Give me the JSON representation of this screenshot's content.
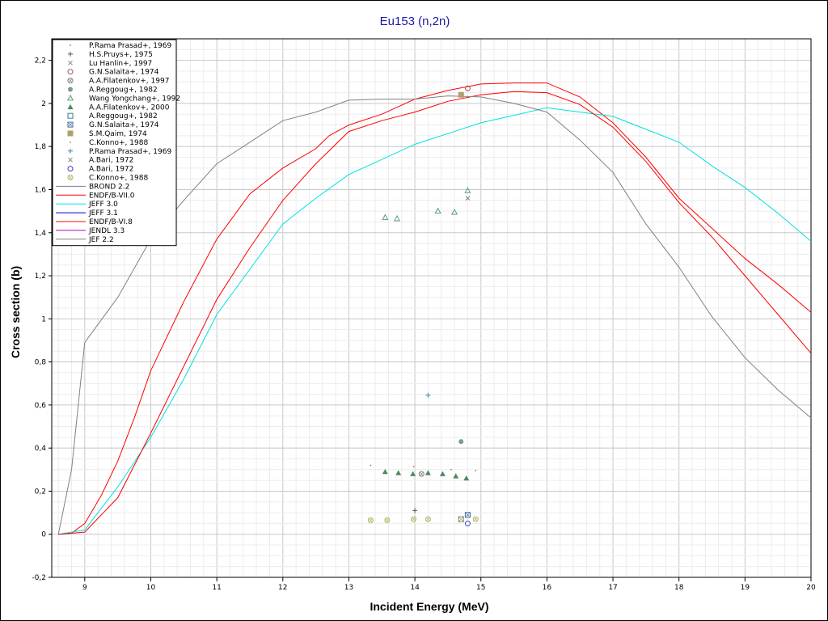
{
  "chart_data": {
    "type": "line",
    "title": "Eu153 (n,2n)",
    "xlabel": "Incident Energy (MeV)",
    "ylabel": "Cross section (b)",
    "xlim": [
      8.5,
      20
    ],
    "ylim": [
      -0.2,
      2.3
    ],
    "grid": true,
    "legend_position": "top-left",
    "x_ticks": [
      9,
      10,
      11,
      12,
      13,
      14,
      15,
      16,
      17,
      18,
      19,
      20
    ],
    "x_tick_labels": [
      "9",
      "10",
      "11",
      "12",
      "13",
      "14",
      "15",
      "16",
      "17",
      "18",
      "19",
      "20"
    ],
    "y_ticks": [
      -0.2,
      0,
      0.2,
      0.4,
      0.6,
      0.8,
      1,
      1.2,
      1.4,
      1.6,
      1.8,
      2,
      2.2
    ],
    "y_tick_labels": [
      "-0,2",
      "0",
      "0,2",
      "0,4",
      "0,6",
      "0,8",
      "1",
      "1,2",
      "1,4",
      "1,6",
      "1,8",
      "2",
      "2,2"
    ],
    "experimental": [
      {
        "name": "P.Rama Prasad+, 1969",
        "marker": "dot",
        "color": "#808080",
        "points": []
      },
      {
        "name": "H.S.Pruys+, 1975",
        "marker": "plus",
        "color": "#555555",
        "points": [
          [
            14.0,
            0.11
          ]
        ]
      },
      {
        "name": "Lu Hanlin+, 1997",
        "marker": "x",
        "color": "#808080",
        "points": [
          [
            14.8,
            1.56
          ]
        ]
      },
      {
        "name": "G.N.Salaita+, 1974",
        "marker": "circle",
        "color": "#a05050",
        "points": [
          [
            14.8,
            2.07
          ]
        ]
      },
      {
        "name": "A.A.Filatenkov+, 1997",
        "marker": "circle-x",
        "color": "#808080",
        "points": [
          [
            14.1,
            0.28
          ]
        ]
      },
      {
        "name": "A.Reggoug+, 1982",
        "marker": "filled-circle",
        "color": "#7a9e8a",
        "points": [
          [
            14.7,
            0.43
          ]
        ]
      },
      {
        "name": "Wang Yongchang+, 1992",
        "marker": "triangle",
        "color": "#5a9e7a",
        "points": [
          [
            13.55,
            1.47
          ],
          [
            13.73,
            1.465
          ],
          [
            14.35,
            1.5
          ],
          [
            14.6,
            1.495
          ],
          [
            14.8,
            1.595
          ]
        ]
      },
      {
        "name": "A.A.Filatenkov+, 2000",
        "marker": "filled-triangle",
        "color": "#4e8a5e",
        "points": [
          [
            13.55,
            0.29
          ],
          [
            13.75,
            0.285
          ],
          [
            13.97,
            0.28
          ],
          [
            14.2,
            0.285
          ],
          [
            14.42,
            0.28
          ],
          [
            14.62,
            0.27
          ],
          [
            14.78,
            0.26
          ]
        ]
      },
      {
        "name": "A.Reggoug+, 1982",
        "marker": "square",
        "color": "#3a7a9a",
        "points": [
          [
            14.7,
            0.07
          ]
        ]
      },
      {
        "name": "G.N.Salaita+, 1974",
        "marker": "square-x",
        "color": "#3a6a9a",
        "points": [
          [
            14.8,
            0.09
          ]
        ]
      },
      {
        "name": "S.M.Qaim, 1974",
        "marker": "filled-square",
        "color": "#b0a070",
        "points": [
          [
            14.7,
            2.04
          ]
        ]
      },
      {
        "name": "C.Konno+, 1988",
        "marker": "dot",
        "color": "#808080",
        "points": [
          [
            13.33,
            0.32
          ],
          [
            13.98,
            0.315
          ],
          [
            14.55,
            0.3
          ],
          [
            14.92,
            0.295
          ]
        ]
      },
      {
        "name": "P.Rama Prasad+, 1969",
        "marker": "plus",
        "color": "#3a8aaa",
        "points": [
          [
            14.2,
            0.645
          ]
        ]
      },
      {
        "name": "A.Bari, 1972",
        "marker": "x",
        "color": "#808080",
        "points": []
      },
      {
        "name": "A.Bari, 1972",
        "marker": "circle",
        "color": "#4040c0",
        "points": [
          [
            14.8,
            0.05
          ]
        ]
      },
      {
        "name": "C.Konno+, 1988",
        "marker": "circle-x",
        "color": "#b0b060",
        "points": [
          [
            13.33,
            0.065
          ],
          [
            13.58,
            0.065
          ],
          [
            13.98,
            0.07
          ],
          [
            14.2,
            0.07
          ],
          [
            14.7,
            0.07
          ],
          [
            14.92,
            0.07
          ]
        ]
      }
    ],
    "series": [
      {
        "name": "BROND 2.2",
        "color": "#808080",
        "width": 1,
        "points": []
      },
      {
        "name": "ENDF/B-VII.0",
        "color": "#ff0000",
        "width": 1,
        "points": [
          [
            8.6,
            0
          ],
          [
            8.8,
            0.005
          ],
          [
            9,
            0.05
          ],
          [
            9.25,
            0.18
          ],
          [
            9.5,
            0.34
          ],
          [
            9.75,
            0.54
          ],
          [
            10,
            0.76
          ],
          [
            10.5,
            1.08
          ],
          [
            11,
            1.37
          ],
          [
            11.5,
            1.58
          ],
          [
            12,
            1.7
          ],
          [
            12.5,
            1.79
          ],
          [
            12.7,
            1.85
          ],
          [
            13,
            1.9
          ],
          [
            13.5,
            1.95
          ],
          [
            14,
            2.02
          ],
          [
            14.5,
            2.06
          ],
          [
            15,
            2.09
          ],
          [
            15.5,
            2.095
          ],
          [
            16,
            2.095
          ],
          [
            16.5,
            2.03
          ],
          [
            17,
            1.91
          ],
          [
            17.5,
            1.75
          ],
          [
            18,
            1.56
          ],
          [
            18.5,
            1.42
          ],
          [
            19,
            1.28
          ],
          [
            19.5,
            1.16
          ],
          [
            20,
            1.03
          ]
        ]
      },
      {
        "name": "JEFF 3.0",
        "color": "#00e0e0",
        "width": 1,
        "points": [
          [
            8.6,
            0
          ],
          [
            9,
            0.02
          ],
          [
            9.5,
            0.22
          ],
          [
            10,
            0.45
          ],
          [
            10.5,
            0.72
          ],
          [
            11,
            1.02
          ],
          [
            11.5,
            1.23
          ],
          [
            12,
            1.44
          ],
          [
            12.5,
            1.56
          ],
          [
            13,
            1.67
          ],
          [
            13.5,
            1.74
          ],
          [
            14,
            1.81
          ],
          [
            14.5,
            1.86
          ],
          [
            15,
            1.91
          ],
          [
            15.5,
            1.945
          ],
          [
            16,
            1.98
          ],
          [
            16.5,
            1.96
          ],
          [
            17,
            1.94
          ],
          [
            17.5,
            1.88
          ],
          [
            18,
            1.82
          ],
          [
            18.5,
            1.71
          ],
          [
            19,
            1.61
          ],
          [
            19.5,
            1.49
          ],
          [
            20,
            1.36
          ]
        ]
      },
      {
        "name": "JEFF 3.1",
        "color": "#0000c0",
        "width": 1,
        "points": []
      },
      {
        "name": "ENDF/B-VI.8",
        "color": "#ff0000",
        "width": 1,
        "points": [
          [
            8.6,
            0
          ],
          [
            9,
            0.01
          ],
          [
            9.5,
            0.17
          ],
          [
            10,
            0.47
          ],
          [
            10.5,
            0.78
          ],
          [
            11,
            1.09
          ],
          [
            11.5,
            1.33
          ],
          [
            12,
            1.55
          ],
          [
            12.5,
            1.72
          ],
          [
            13,
            1.87
          ],
          [
            13.5,
            1.92
          ],
          [
            14,
            1.96
          ],
          [
            14.5,
            2.01
          ],
          [
            15,
            2.04
          ],
          [
            15.5,
            2.055
          ],
          [
            16,
            2.05
          ],
          [
            16.5,
            1.995
          ],
          [
            17,
            1.89
          ],
          [
            17.5,
            1.73
          ],
          [
            18,
            1.54
          ],
          [
            18.5,
            1.38
          ],
          [
            19,
            1.2
          ],
          [
            19.5,
            1.02
          ],
          [
            20,
            0.84
          ]
        ]
      },
      {
        "name": "JENDL 3.3",
        "color": "#c000c0",
        "width": 1,
        "points": []
      },
      {
        "name": "JEF 2.2",
        "color": "#808080",
        "width": 1,
        "points": [
          [
            8.6,
            0
          ],
          [
            8.8,
            0.3
          ],
          [
            9,
            0.89
          ],
          [
            9.5,
            1.1
          ],
          [
            10,
            1.37
          ],
          [
            10.5,
            1.55
          ],
          [
            11,
            1.72
          ],
          [
            11.5,
            1.82
          ],
          [
            12,
            1.92
          ],
          [
            12.5,
            1.96
          ],
          [
            13,
            2.015
          ],
          [
            13.5,
            2.02
          ],
          [
            14,
            2.02
          ],
          [
            14.5,
            2.035
          ],
          [
            15,
            2.03
          ],
          [
            15.5,
            2.0
          ],
          [
            16,
            1.96
          ],
          [
            16.5,
            1.83
          ],
          [
            17,
            1.68
          ],
          [
            17.5,
            1.44
          ],
          [
            18,
            1.24
          ],
          [
            18.5,
            1.01
          ],
          [
            19,
            0.82
          ],
          [
            19.5,
            0.67
          ],
          [
            20,
            0.54
          ]
        ]
      }
    ],
    "legend": [
      {
        "label": "P.Rama Prasad+, 1969",
        "kind": "marker",
        "marker": "dot",
        "color": "#808080"
      },
      {
        "label": "H.S.Pruys+, 1975",
        "kind": "marker",
        "marker": "plus",
        "color": "#555555"
      },
      {
        "label": "Lu Hanlin+, 1997",
        "kind": "marker",
        "marker": "x",
        "color": "#808080"
      },
      {
        "label": "G.N.Salaita+, 1974",
        "kind": "marker",
        "marker": "circle",
        "color": "#a05050"
      },
      {
        "label": "A.A.Filatenkov+, 1997",
        "kind": "marker",
        "marker": "circle-x",
        "color": "#808080"
      },
      {
        "label": "A.Reggoug+, 1982",
        "kind": "marker",
        "marker": "filled-circle",
        "color": "#7a9e8a"
      },
      {
        "label": "Wang Yongchang+, 1992",
        "kind": "marker",
        "marker": "triangle",
        "color": "#5a9e7a"
      },
      {
        "label": "A.A.Filatenkov+, 2000",
        "kind": "marker",
        "marker": "filled-triangle",
        "color": "#4e8a5e"
      },
      {
        "label": "A.Reggoug+, 1982",
        "kind": "marker",
        "marker": "square",
        "color": "#3a7a9a"
      },
      {
        "label": "G.N.Salaita+, 1974",
        "kind": "marker",
        "marker": "square-x",
        "color": "#3a6a9a"
      },
      {
        "label": "S.M.Qaim, 1974",
        "kind": "marker",
        "marker": "filled-square",
        "color": "#b0a070"
      },
      {
        "label": "C.Konno+, 1988",
        "kind": "marker",
        "marker": "dot",
        "color": "#808080"
      },
      {
        "label": "P.Rama Prasad+, 1969",
        "kind": "marker",
        "marker": "plus",
        "color": "#3a8aaa"
      },
      {
        "label": "A.Bari, 1972",
        "kind": "marker",
        "marker": "x",
        "color": "#808080"
      },
      {
        "label": "A.Bari, 1972",
        "kind": "marker",
        "marker": "circle",
        "color": "#4040c0"
      },
      {
        "label": "C.Konno+, 1988",
        "kind": "marker",
        "marker": "circle-x",
        "color": "#b0b060"
      },
      {
        "label": "BROND 2.2",
        "kind": "line",
        "color": "#808080"
      },
      {
        "label": "ENDF/B-VII.0",
        "kind": "line",
        "color": "#ff0000"
      },
      {
        "label": "JEFF 3.0",
        "kind": "line",
        "color": "#00e0e0"
      },
      {
        "label": "JEFF 3.1",
        "kind": "line",
        "color": "#0000c0"
      },
      {
        "label": "ENDF/B-VI.8",
        "kind": "line",
        "color": "#ff0000"
      },
      {
        "label": "JENDL 3.3",
        "kind": "line",
        "color": "#c000c0"
      },
      {
        "label": "JEF 2.2",
        "kind": "line",
        "color": "#808080"
      }
    ]
  }
}
